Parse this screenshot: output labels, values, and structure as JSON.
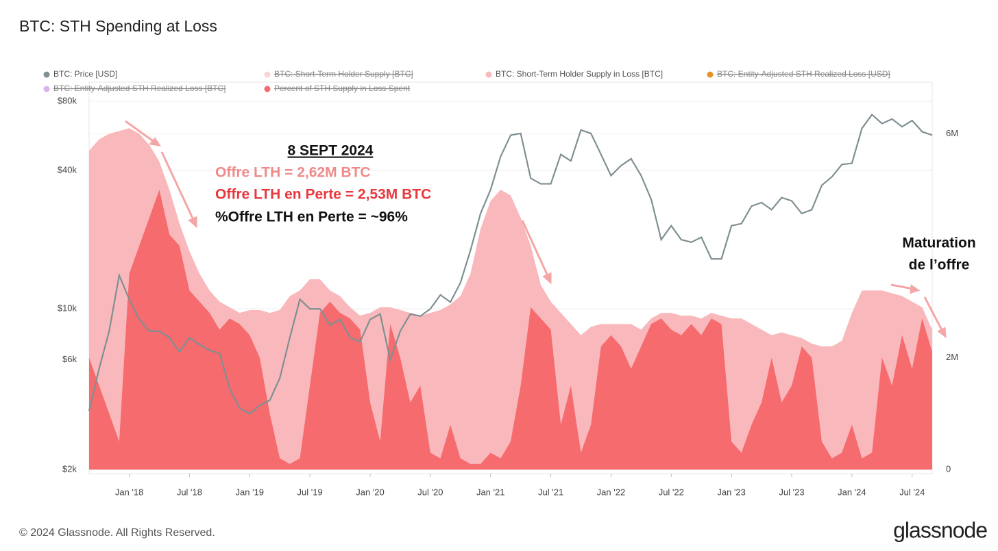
{
  "chart_data": {
    "type": "area",
    "title": "BTC: STH Spending at Loss",
    "categories": [
      "2017-09",
      "2017-10",
      "2017-11",
      "2017-12",
      "2018-01",
      "2018-02",
      "2018-03",
      "2018-04",
      "2018-05",
      "2018-06",
      "2018-07",
      "2018-08",
      "2018-09",
      "2018-10",
      "2018-11",
      "2018-12",
      "2019-01",
      "2019-02",
      "2019-03",
      "2019-04",
      "2019-05",
      "2019-06",
      "2019-07",
      "2019-08",
      "2019-09",
      "2019-10",
      "2019-11",
      "2019-12",
      "2020-01",
      "2020-02",
      "2020-03",
      "2020-04",
      "2020-05",
      "2020-06",
      "2020-07",
      "2020-08",
      "2020-09",
      "2020-10",
      "2020-11",
      "2020-12",
      "2021-01",
      "2021-02",
      "2021-03",
      "2021-04",
      "2021-05",
      "2021-06",
      "2021-07",
      "2021-08",
      "2021-09",
      "2021-10",
      "2021-11",
      "2021-12",
      "2022-01",
      "2022-02",
      "2022-03",
      "2022-04",
      "2022-05",
      "2022-06",
      "2022-07",
      "2022-08",
      "2022-09",
      "2022-10",
      "2022-11",
      "2022-12",
      "2023-01",
      "2023-02",
      "2023-03",
      "2023-04",
      "2023-05",
      "2023-06",
      "2023-07",
      "2023-08",
      "2023-09",
      "2023-10",
      "2023-11",
      "2023-12",
      "2024-01",
      "2024-02",
      "2024-03",
      "2024-04",
      "2024-05",
      "2024-06",
      "2024-07",
      "2024-08",
      "2024-09"
    ],
    "xticks": [
      {
        "value": "2018-01",
        "label": "Jan '18"
      },
      {
        "value": "2018-07",
        "label": "Jul '18"
      },
      {
        "value": "2019-01",
        "label": "Jan '19"
      },
      {
        "value": "2019-07",
        "label": "Jul '19"
      },
      {
        "value": "2020-01",
        "label": "Jan '20"
      },
      {
        "value": "2020-07",
        "label": "Jul '20"
      },
      {
        "value": "2021-01",
        "label": "Jan '21"
      },
      {
        "value": "2021-07",
        "label": "Jul '21"
      },
      {
        "value": "2022-01",
        "label": "Jan '22"
      },
      {
        "value": "2022-07",
        "label": "Jul '22"
      },
      {
        "value": "2023-01",
        "label": "Jan '23"
      },
      {
        "value": "2023-07",
        "label": "Jul '23"
      },
      {
        "value": "2024-01",
        "label": "Jan '24"
      },
      {
        "value": "2024-07",
        "label": "Jul '24"
      }
    ],
    "ylim": [
      2000,
      80000
    ],
    "log": true,
    "yticks": [
      {
        "value": 2000,
        "label": "$2k"
      },
      {
        "value": 6000,
        "label": "$6k"
      },
      {
        "value": 10000,
        "label": "$10k"
      },
      {
        "value": 40000,
        "label": "$40k"
      },
      {
        "value": 80000,
        "label": "$80k"
      }
    ],
    "y2lim": [
      0,
      6580000
    ],
    "y2ticks": [
      0,
      {
        "value": 2000000,
        "label": "2M"
      },
      {
        "value": 6000000,
        "label": "6M"
      }
    ],
    "grid": true,
    "series": [
      {
        "name": "BTC: Price [USD]",
        "color": "#7f8f92",
        "kind": "line",
        "values": [
          3600,
          5500,
          8000,
          14000,
          11000,
          9000,
          8000,
          8000,
          7500,
          6500,
          7500,
          7000,
          6600,
          6400,
          4500,
          3700,
          3500,
          3800,
          4000,
          5000,
          7500,
          11000,
          10000,
          10000,
          8500,
          9000,
          7500,
          7200,
          9000,
          9500,
          6000,
          8000,
          9500,
          9300,
          10000,
          11500,
          10700,
          13000,
          18000,
          26000,
          33000,
          46000,
          57000,
          58000,
          37000,
          35000,
          35000,
          47000,
          44000,
          60000,
          58000,
          47000,
          38000,
          42000,
          45000,
          38000,
          30000,
          20000,
          23000,
          20000,
          19500,
          20500,
          16500,
          16500,
          23000,
          23500,
          28000,
          29000,
          27000,
          30500,
          29500,
          26000,
          27000,
          34500,
          37500,
          42500,
          43000,
          61000,
          70000,
          64000,
          67000,
          62000,
          66000,
          59000,
          57000
        ]
      },
      {
        "name": "BTC: Short-Term Holder Supply [BTC]",
        "color": "#fad4d4",
        "axis": "y2",
        "kind": "area",
        "hidden": true
      },
      {
        "name": "BTC: Short-Term Holder Supply in Loss [BTC]",
        "color": "#f9b8bb",
        "axis": "y2",
        "kind": "area",
        "values": [
          5700000,
          5900000,
          6000000,
          6050000,
          6100000,
          6000000,
          5800000,
          5500000,
          5000000,
          4400000,
          3900000,
          3500000,
          3200000,
          3000000,
          2900000,
          2800000,
          2850000,
          2850000,
          2800000,
          2850000,
          3100000,
          3200000,
          3400000,
          3400000,
          3200000,
          3100000,
          2900000,
          2750000,
          2800000,
          2900000,
          2900000,
          2850000,
          2800000,
          2750000,
          2800000,
          2850000,
          2950000,
          3100000,
          3500000,
          4300000,
          4800000,
          5000000,
          4900000,
          4500000,
          4000000,
          3300000,
          3000000,
          2800000,
          2600000,
          2400000,
          2550000,
          2600000,
          2600000,
          2600000,
          2600000,
          2500000,
          2700000,
          2800000,
          2800000,
          2750000,
          2750000,
          2700000,
          2800000,
          2750000,
          2700000,
          2700000,
          2600000,
          2500000,
          2400000,
          2450000,
          2400000,
          2350000,
          2250000,
          2200000,
          2200000,
          2300000,
          2800000,
          3200000,
          3200000,
          3200000,
          3150000,
          3100000,
          3000000,
          2900000,
          2500000
        ]
      },
      {
        "name": "BTC: Entity-Adjusted STH Realized Loss [USD]",
        "color": "#e8912c",
        "hidden": true
      },
      {
        "name": "BTC: Entity-Adjusted STH Realized Loss [BTC]",
        "color": "#d9b3f0",
        "hidden": true
      },
      {
        "name": "Percent of STH Supply in Loss Spent",
        "color": "#f56b6e",
        "axis": "y2",
        "kind": "area",
        "hidden": true,
        "values": [
          2000000,
          1500000,
          1000000,
          500000,
          3500000,
          4000000,
          4500000,
          5000000,
          4200000,
          4000000,
          3200000,
          3000000,
          2800000,
          2500000,
          2700000,
          2600000,
          2400000,
          2000000,
          1000000,
          200000,
          100000,
          200000,
          1500000,
          2800000,
          3000000,
          2800000,
          2700000,
          2500000,
          1200000,
          500000,
          2600000,
          2000000,
          1200000,
          1500000,
          300000,
          200000,
          800000,
          200000,
          100000,
          100000,
          300000,
          200000,
          500000,
          1500000,
          2900000,
          2700000,
          2500000,
          800000,
          1500000,
          300000,
          800000,
          2200000,
          2400000,
          2200000,
          1800000,
          2200000,
          2600000,
          2700000,
          2500000,
          2400000,
          2600000,
          2400000,
          2700000,
          2600000,
          500000,
          300000,
          800000,
          1200000,
          2000000,
          1200000,
          1500000,
          2200000,
          2000000,
          500000,
          200000,
          300000,
          800000,
          200000,
          300000,
          2000000,
          1500000,
          2400000,
          1800000,
          2700000,
          2100000
        ]
      }
    ],
    "annotations": [
      "8 SEPT 2024",
      "Offre LTH = 2,62M BTC",
      "Offre LTH en Perte = 2,53M BTC",
      "%Offre LTH en Perte = ~96%",
      "Maturation",
      "de l’offre"
    ]
  },
  "footer": {
    "copyright": "© 2024 Glassnode. All Rights Reserved.",
    "logo": "glassnode"
  }
}
